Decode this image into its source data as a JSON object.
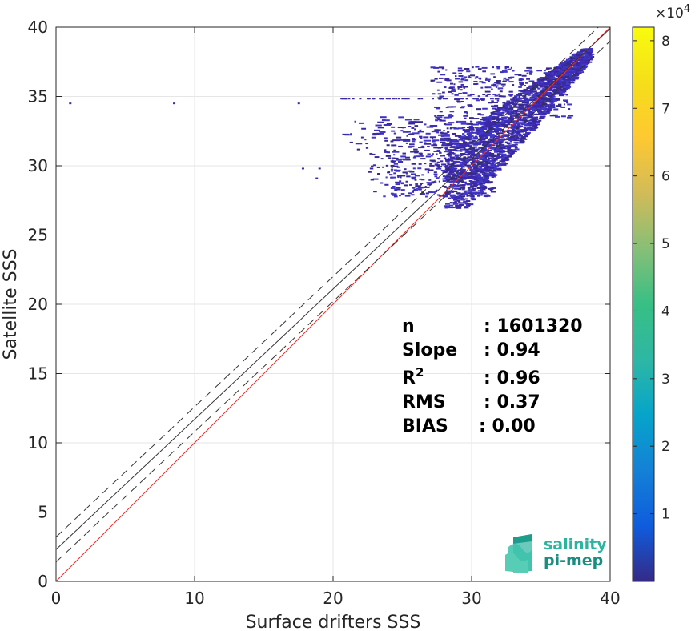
{
  "chart_data": {
    "type": "scatter",
    "xlabel": "Surface drifters SSS",
    "ylabel": "Satellite SSS",
    "xlim": [
      0,
      40
    ],
    "ylim": [
      0,
      40
    ],
    "x_ticks": [
      "0",
      "10",
      "20",
      "30",
      "40"
    ],
    "y_ticks": [
      "0",
      "5",
      "10",
      "15",
      "20",
      "25",
      "30",
      "35",
      "40"
    ],
    "grid": true,
    "lines": [
      {
        "style": "solid",
        "color": "#e4322b",
        "description": "1:1 line",
        "intercept": 0,
        "slope": 1
      },
      {
        "style": "solid",
        "color": "#333333",
        "description": "regression fit",
        "intercept": 2.3,
        "slope": 0.94
      },
      {
        "style": "dashed",
        "color": "#333333",
        "description": "upper bound",
        "intercept": 3.2,
        "slope": 0.94
      },
      {
        "style": "dashed",
        "color": "#333333",
        "description": "lower bound",
        "intercept": 1.4,
        "slope": 0.94
      }
    ],
    "density_clusters": [
      {
        "x_range": [
          28,
          38.5
        ],
        "y_range": [
          27,
          38.5
        ],
        "level": "high"
      },
      {
        "x_range": [
          20,
          32
        ],
        "y_range": [
          31,
          33.5
        ],
        "level": "low"
      },
      {
        "x_range": [
          27,
          34
        ],
        "y_range": [
          33.5,
          37
        ],
        "level": "low"
      }
    ],
    "outliers": [
      {
        "x": 1.0,
        "y": 34.5
      },
      {
        "x": 8.5,
        "y": 34.5
      },
      {
        "x": 17.5,
        "y": 34.5
      },
      {
        "x": 17.8,
        "y": 29.8
      },
      {
        "x": 19.0,
        "y": 29.8
      },
      {
        "x": 18.8,
        "y": 29.1
      }
    ],
    "colorbar": {
      "range": [
        0,
        82000
      ],
      "ticks": [
        "1",
        "2",
        "3",
        "4",
        "5",
        "6",
        "7",
        "8"
      ],
      "multiplier": "×10",
      "multiplier_exponent": "4",
      "colormap": "parula"
    },
    "stats": [
      {
        "label": "n",
        "sep": ":",
        "value": "1601320"
      },
      {
        "label": "Slope",
        "sep": ":",
        "value": "0.94"
      },
      {
        "label": "R",
        "sup": "2",
        "sep": ":",
        "value": "0.96"
      },
      {
        "label": "RMS",
        "sep": ":",
        "value": "0.37"
      },
      {
        "label": "BIAS",
        "sep": ":",
        "value": "0.00"
      }
    ]
  },
  "logo": {
    "line1": "salinity",
    "line2": "pi-mep"
  }
}
